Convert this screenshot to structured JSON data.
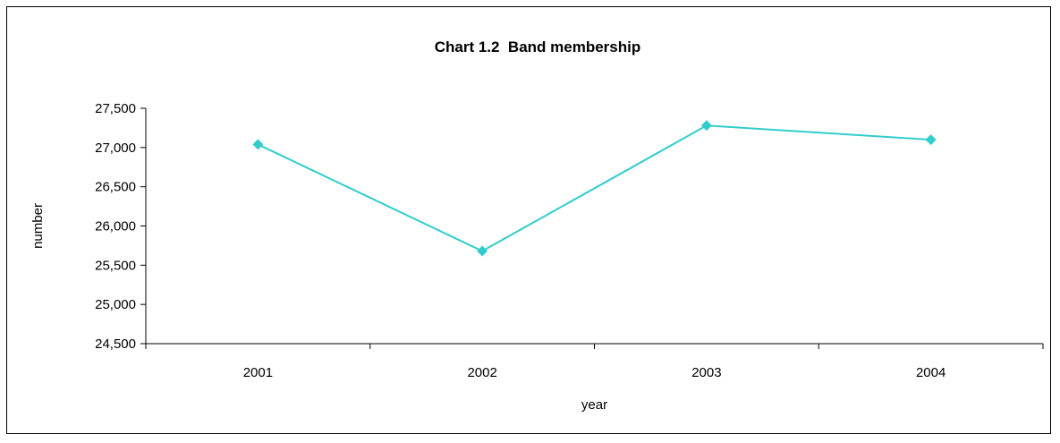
{
  "chart_data": {
    "type": "line",
    "title": "Chart 1.2  Band membership",
    "xlabel": "year",
    "ylabel": "number",
    "categories": [
      "2001",
      "2002",
      "2003",
      "2004"
    ],
    "series": [
      {
        "values": [
          27040,
          25680,
          27280,
          27100
        ]
      }
    ],
    "ylim": [
      24500,
      27500
    ],
    "yticks": [
      24500,
      25000,
      25500,
      26000,
      26500,
      27000,
      27500
    ],
    "ytick_labels": [
      "24,500",
      "25,000",
      "25,500",
      "26,000",
      "26,500",
      "27,000",
      "27,500"
    ],
    "grid": false,
    "legend": "none",
    "line_color": "#33CCCC",
    "marker": "diamond"
  }
}
